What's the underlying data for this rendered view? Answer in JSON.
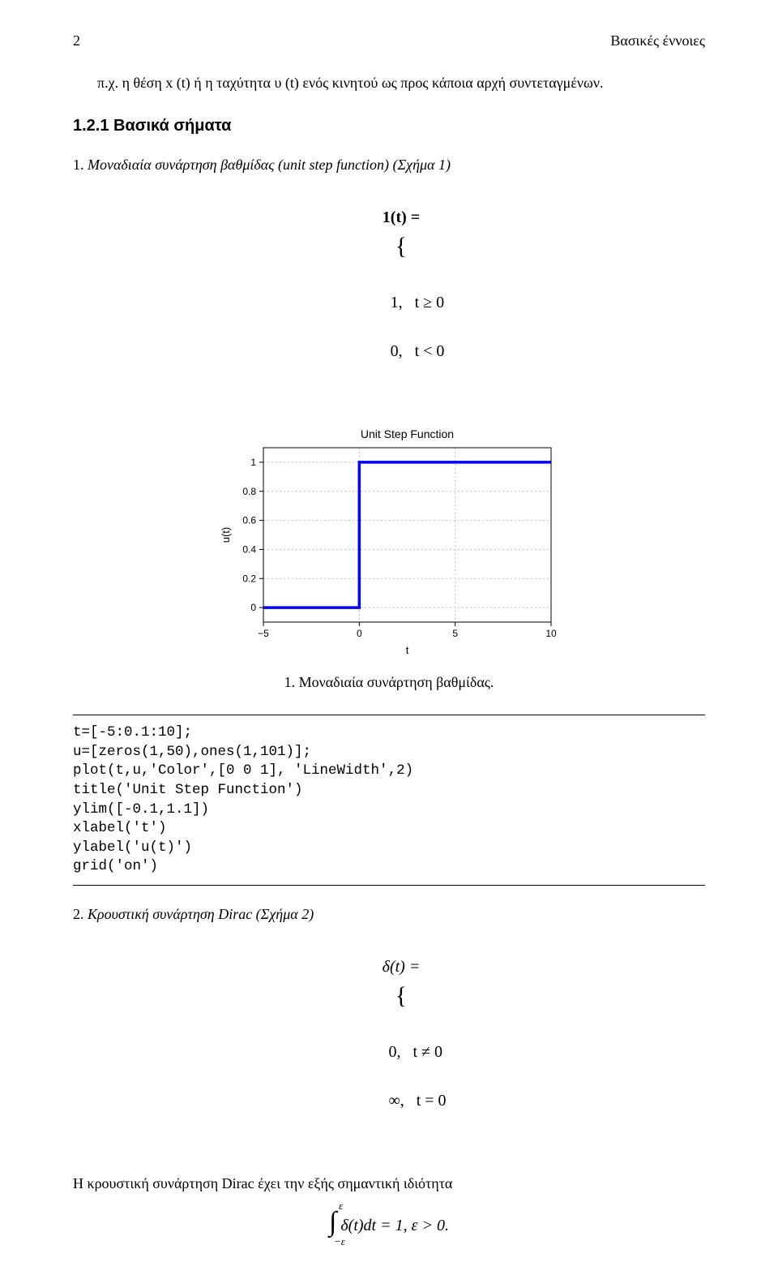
{
  "running_head": {
    "page_number": "2",
    "title": "Βασικές έννοιες"
  },
  "para1": "π.χ. η θέση x (t) ή η ταχύτητα υ (t) ενός κινητού ως προς κάποια αρχή συντεταγμένων.",
  "section_heading": "1.2.1   Βασικά σήματα",
  "item1": {
    "lead": "1. Μοναδιαία συνάρτηση βαθμίδας (unit step function) (Σχήμα 1)",
    "eq_lhs": "1(t) =",
    "eq_row1": "1,   t ≥ 0",
    "eq_row2": "0,   t < 0"
  },
  "chart": {
    "type": "line",
    "title": "Unit Step Function",
    "title_fontsize": 14,
    "xlabel": "t",
    "ylabel": "u(t)",
    "label_fontsize": 13,
    "xlim": [
      -5,
      10
    ],
    "ylim": [
      -0.1,
      1.1
    ],
    "xticks": [
      -5,
      0,
      5,
      10
    ],
    "yticks": [
      0,
      0.2,
      0.4,
      0.6,
      0.8,
      1
    ],
    "series": {
      "x": [
        -5,
        0,
        0,
        10
      ],
      "y": [
        0,
        0,
        1,
        1
      ]
    },
    "line_color": "#0000ff",
    "line_width": 3.5,
    "grid_color": "#bfbfbf",
    "grid_dash": "2 3",
    "axis_color": "#000000",
    "background_color": "#ffffff",
    "tick_fontsize": 12
  },
  "caption1": "1. Μοναδιαία συνάρτηση βαθμίδας.",
  "code": "t=[-5:0.1:10];\nu=[zeros(1,50),ones(1,101)];\nplot(t,u,'Color',[0 0 1], 'LineWidth',2)\ntitle('Unit Step Function')\nylim([-0.1,1.1])\nxlabel('t')\nylabel('u(t)')\ngrid('on')",
  "item2": {
    "lead": "2. Κρουστική συνάρτηση Dirac (Σχήμα 2)",
    "eq_lhs": "δ(t) =",
    "eq_row1": "0,   t ≠ 0",
    "eq_row2": "∞,   t = 0",
    "desc": "Η κρουστική συνάρτηση Dirac έχει την εξής σημαντική ιδιότητα",
    "integral_ub": "ε",
    "integral_lb": "−ε",
    "integral_body": "δ(t)dt = 1, ε > 0."
  }
}
